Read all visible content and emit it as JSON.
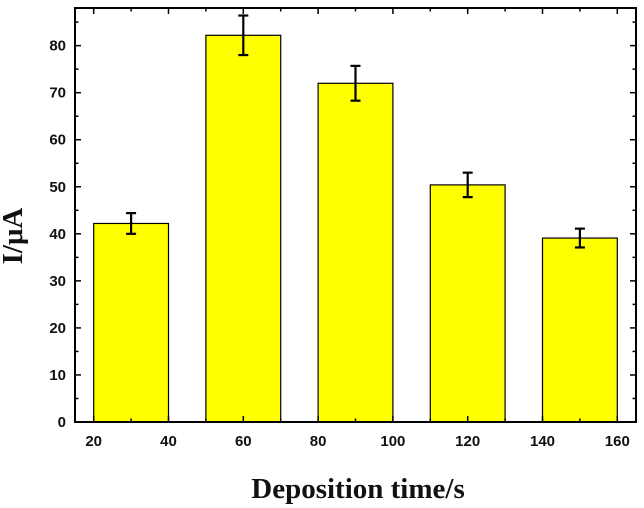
{
  "chart_data": {
    "type": "bar",
    "title": "",
    "xlabel": "Deposition time/s",
    "ylabel": "I/μA",
    "x": [
      30,
      60,
      90,
      120,
      150
    ],
    "values": [
      42.2,
      82.2,
      72.0,
      50.4,
      39.1
    ],
    "errors": [
      2.2,
      4.2,
      3.7,
      2.6,
      2.0
    ],
    "bar_width": 20,
    "xlim": [
      15,
      165
    ],
    "ylim": [
      0,
      88
    ],
    "xticks": [
      20,
      40,
      60,
      80,
      100,
      120,
      140,
      160
    ],
    "yticks": [
      0,
      10,
      20,
      30,
      40,
      50,
      60,
      70,
      80
    ],
    "grid": false,
    "legend": "none",
    "colors": {
      "bar_fill": "#ffff00",
      "bar_stroke": "#000000",
      "axis": "#000000"
    }
  }
}
